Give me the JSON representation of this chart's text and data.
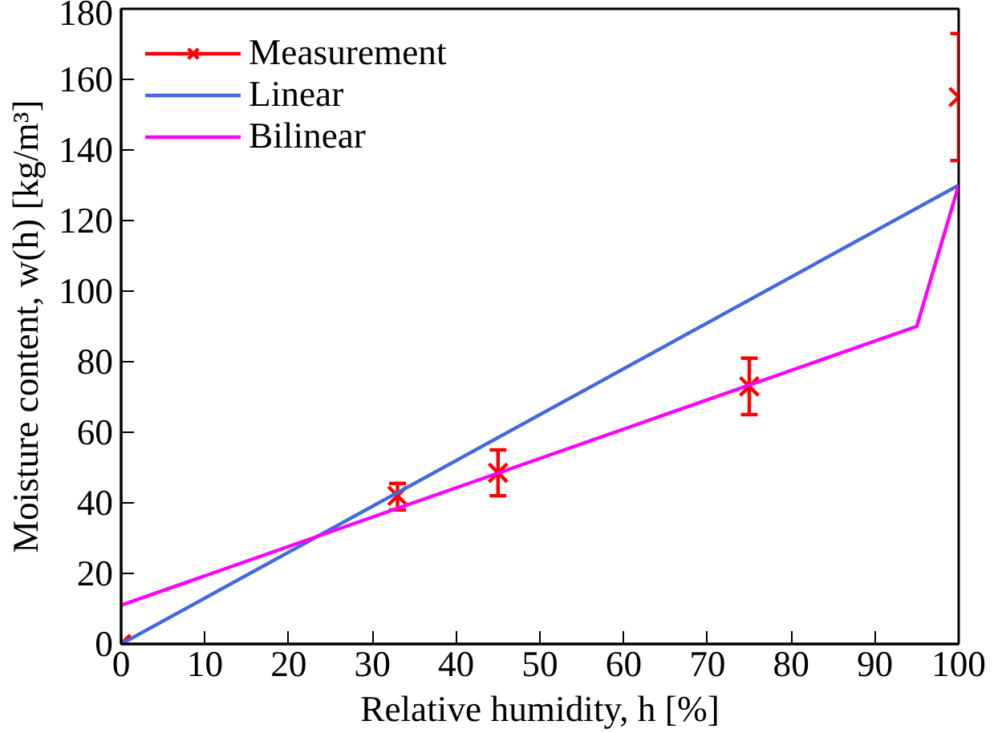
{
  "chart_data": {
    "type": "line",
    "xlabel": "Relative humidity, h [%]",
    "ylabel": "Moisture content, w(h) [kg/m³]",
    "xlim": [
      0,
      100
    ],
    "ylim": [
      0,
      180
    ],
    "xticks": [
      0,
      10,
      20,
      30,
      40,
      50,
      60,
      70,
      80,
      90,
      100
    ],
    "yticks": [
      0,
      20,
      40,
      60,
      80,
      100,
      120,
      140,
      160,
      180
    ],
    "grid": false,
    "legend": "top left",
    "series": [
      {
        "name": "Measurement",
        "type": "scatter",
        "marker": "cross",
        "color": "#ff0000",
        "x": [
          0,
          33,
          45,
          75,
          100
        ],
        "values": [
          0,
          42,
          48.5,
          73,
          155
        ],
        "errors": [
          null,
          [
            38,
            45.5
          ],
          [
            42,
            55
          ],
          [
            65,
            81
          ],
          [
            137,
            173
          ]
        ]
      },
      {
        "name": "Linear",
        "color": "#4169e1",
        "x": [
          0,
          100
        ],
        "values": [
          0,
          130
        ]
      },
      {
        "name": "Bilinear",
        "color": "#ff00ff",
        "x": [
          0,
          95,
          100
        ],
        "values": [
          11,
          90,
          130
        ]
      }
    ]
  }
}
